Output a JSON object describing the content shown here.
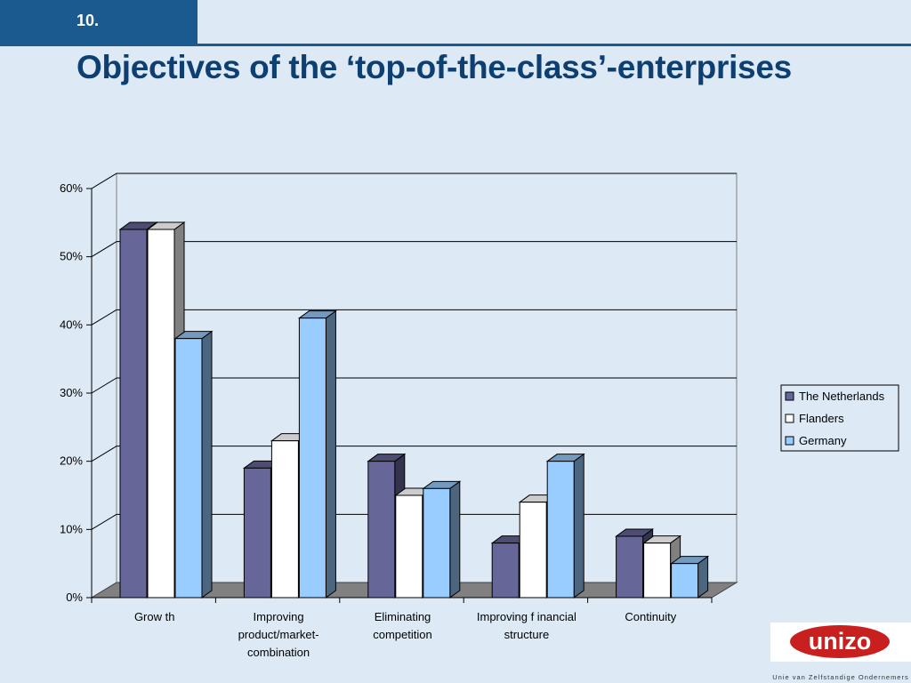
{
  "slide": {
    "number": "10.",
    "title": "Objectives of the ‘top-of-the-class’-enterprises"
  },
  "logo": {
    "word": "unizo",
    "tagline": "Unie van Zelfstandige Ondernemers",
    "color": "#c8201e"
  },
  "chart_data": {
    "type": "bar",
    "categories": [
      [
        "Grow th"
      ],
      [
        "Improving",
        "product/market-",
        "combination"
      ],
      [
        "Eliminating",
        "competition"
      ],
      [
        "Improving f inancial",
        "structure"
      ],
      [
        "Continuity"
      ]
    ],
    "series": [
      {
        "name": "The Netherlands",
        "values": [
          54,
          19,
          20,
          8,
          9
        ],
        "color": "#666699"
      },
      {
        "name": "Flanders",
        "values": [
          54,
          23,
          15,
          14,
          8
        ],
        "color": "#ffffff"
      },
      {
        "name": "Germany",
        "values": [
          38,
          41,
          16,
          20,
          5
        ],
        "color": "#99ccff"
      }
    ],
    "yticks": [
      "0%",
      "10%",
      "20%",
      "30%",
      "40%",
      "50%",
      "60%"
    ],
    "ylim": [
      0,
      60
    ],
    "grid": true,
    "legend": "right"
  }
}
